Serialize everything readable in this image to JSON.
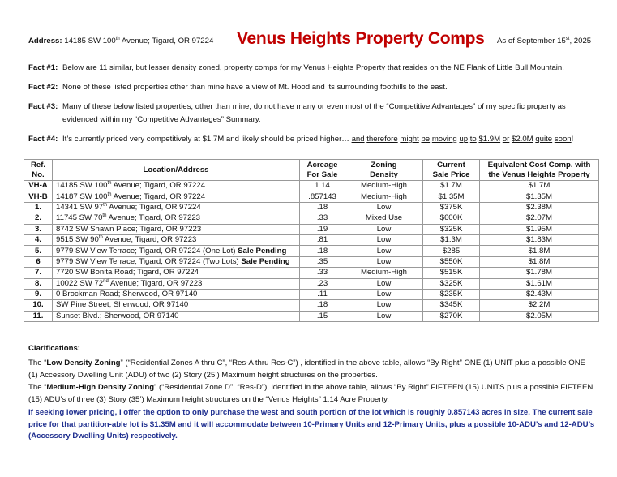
{
  "header": {
    "address_label": "Address:",
    "address_pre": " 14185 SW 100",
    "address_sup": "th",
    "address_post": " Avenue; Tigard, OR  97224",
    "title": "Venus Heights Property Comps",
    "date_pre": "As of September 15",
    "date_sup": "st",
    "date_post": ", 2025",
    "title_color": "#c00000"
  },
  "facts": [
    {
      "label": "Fact #1:",
      "text": "Below are 11 similar, but lesser density zoned, property comps for my Venus Heights Property that resides on the NE Flank of Little Bull Mountain."
    },
    {
      "label": "Fact #2:",
      "text": "None of these listed properties other than mine have a view of Mt. Hood and its surrounding foothills to the east."
    },
    {
      "label": "Fact #3:",
      "text": "Many of these below listed properties, other than mine, do not have many or even most of the “Competitive Advantages” of my specific property as",
      "text2": "evidenced within my “Competitive Advantages” Summary."
    },
    {
      "label": "Fact #4:",
      "text": "It’s currently priced very competitively at $1.7M and likely should be priced higher… ",
      "underlined": [
        "and",
        "therefore",
        "might",
        "be",
        "moving",
        "up",
        "to",
        "$1.9M",
        "or",
        "$2.0M",
        "quite",
        "soon"
      ],
      "end": "!"
    }
  ],
  "table": {
    "headers": [
      [
        "Ref.",
        "No."
      ],
      [
        "Location/Address"
      ],
      [
        "Acreage",
        "For Sale"
      ],
      [
        "Zoning",
        "Density"
      ],
      [
        "Current",
        "Sale Price"
      ],
      [
        "Equivalent Cost Comp. with",
        "the Venus Heights Property"
      ]
    ],
    "rows": [
      {
        "ref": "VH-A",
        "addr": [
          "14185 SW 100",
          "th",
          " Avenue;  Tigard, OR  97224"
        ],
        "note": "",
        "acreage": "1.14",
        "zoning": "Medium-High",
        "price": "$1.7M",
        "equiv": "$1.7M"
      },
      {
        "ref": "VH-B",
        "addr": [
          "14187 SW 100",
          "th",
          " Avenue; Tigard, OR  97224"
        ],
        "note": "",
        "acreage": ".857143",
        "zoning": "Medium-High",
        "price": "$1.35M",
        "equiv": "$1.35M"
      },
      {
        "ref": "1.",
        "addr": [
          "14341 SW 97",
          "th",
          " Avenue;  Tigard, OR  97224"
        ],
        "note": "",
        "acreage": ".18",
        "zoning": "Low",
        "price": "$375K",
        "equiv": "$2.38M"
      },
      {
        "ref": "2.",
        "addr": [
          "11745 SW 70",
          "th",
          " Avenue;  Tigard, OR  97223"
        ],
        "note": "",
        "acreage": ".33",
        "zoning": "Mixed Use",
        "price": "$600K",
        "equiv": "$2.07M"
      },
      {
        "ref": "3.",
        "addr": [
          "8742 SW Shawn Place;  Tigard, OR  97223",
          "",
          ""
        ],
        "note": "",
        "acreage": ".19",
        "zoning": "Low",
        "price": "$325K",
        "equiv": "$1.95M"
      },
      {
        "ref": "4.",
        "addr": [
          "9515 SW 90",
          "th",
          " Avenue;  Tigard, OR  97223"
        ],
        "note": "",
        "acreage": ".81",
        "zoning": "Low",
        "price": "$1.3M",
        "equiv": "$1.83M"
      },
      {
        "ref": "5.",
        "addr": [
          "9779 SW View Terrace;  Tigard, OR  97224 (One Lot) ",
          "",
          ""
        ],
        "note": "Sale Pending",
        "acreage": ".18",
        "zoning": "Low",
        "price": "$285",
        "equiv": "$1.8M"
      },
      {
        "ref": "6",
        "addr": [
          "9779 SW View Terrace;  Tigard, OR  97224 (Two Lots) ",
          "",
          ""
        ],
        "note": "Sale Pending",
        "acreage": ".35",
        "zoning": "Low",
        "price": "$550K",
        "equiv": "$1.8M"
      },
      {
        "ref": "7.",
        "addr": [
          "7720 SW Bonita Road; Tigard, OR  97224",
          "",
          ""
        ],
        "note": "",
        "acreage": ".33",
        "zoning": "Medium-High",
        "price": "$515K",
        "equiv": "$1.78M"
      },
      {
        "ref": "8.",
        "addr": [
          "10022 SW 72",
          "nd",
          " Avenue;  Tigard, OR  97223"
        ],
        "note": "",
        "acreage": ".23",
        "zoning": "Low",
        "price": "$325K",
        "equiv": "$1.61M"
      },
      {
        "ref": "9.",
        "addr": [
          "0 Brockman Road;  Sherwood, OR  97140",
          "",
          ""
        ],
        "note": "",
        "acreage": ".11",
        "zoning": "Low",
        "price": "$235K",
        "equiv": "$2.43M"
      },
      {
        "ref": "10.",
        "addr": [
          "SW Pine Street;  Sherwood, OR  97140",
          "",
          ""
        ],
        "note": "",
        "acreage": ".18",
        "zoning": "Low",
        "price": "$345K",
        "equiv": "$2.2M"
      },
      {
        "ref": "11.",
        "addr": [
          "Sunset Blvd.;  Sherwood, OR  97140",
          "",
          ""
        ],
        "note": "",
        "acreage": ".15",
        "zoning": "Low",
        "price": "$270K",
        "equiv": "$2.05M"
      }
    ]
  },
  "clarifications": {
    "heading": "Clarifications:",
    "low": {
      "pre": "The “",
      "bold": "Low Density Zoning",
      "text": "” (“Residential Zones A thru C”, “Res-A thru Res-C”) , identified in the above table, allows “By Right” ONE (1) UNIT plus a possible ONE (1) Accessory Dwelling Unit (ADU) of two (2) Story (25’) Maximum height structures on the properties."
    },
    "medium": {
      "pre": "The “",
      "bold": "Medium-High Density Zoning",
      "text": "” (“Residential Zone D”, “Res-D”), identified in the above table, allows “By Right” FIFTEEN (15) UNITS plus a possible FIFTEEN (15) ADU’s of three (3) Story (35’) Maximum height structures on the “Venus Heights” 1.14 Acre Property."
    },
    "offer": "If seeking lower pricing, I offer the option to only purchase the west and south portion of the lot which is roughly 0.857143 acres in size.  The current sale price for that partition-able lot is $1.35M and it will accommodate between 10-Primary Units and 12-Primary Units, plus a possible 10-ADU’s and 12-ADU’s (Accessory Dwelling Units) respectively.",
    "offer_color": "#1f2f8f"
  }
}
